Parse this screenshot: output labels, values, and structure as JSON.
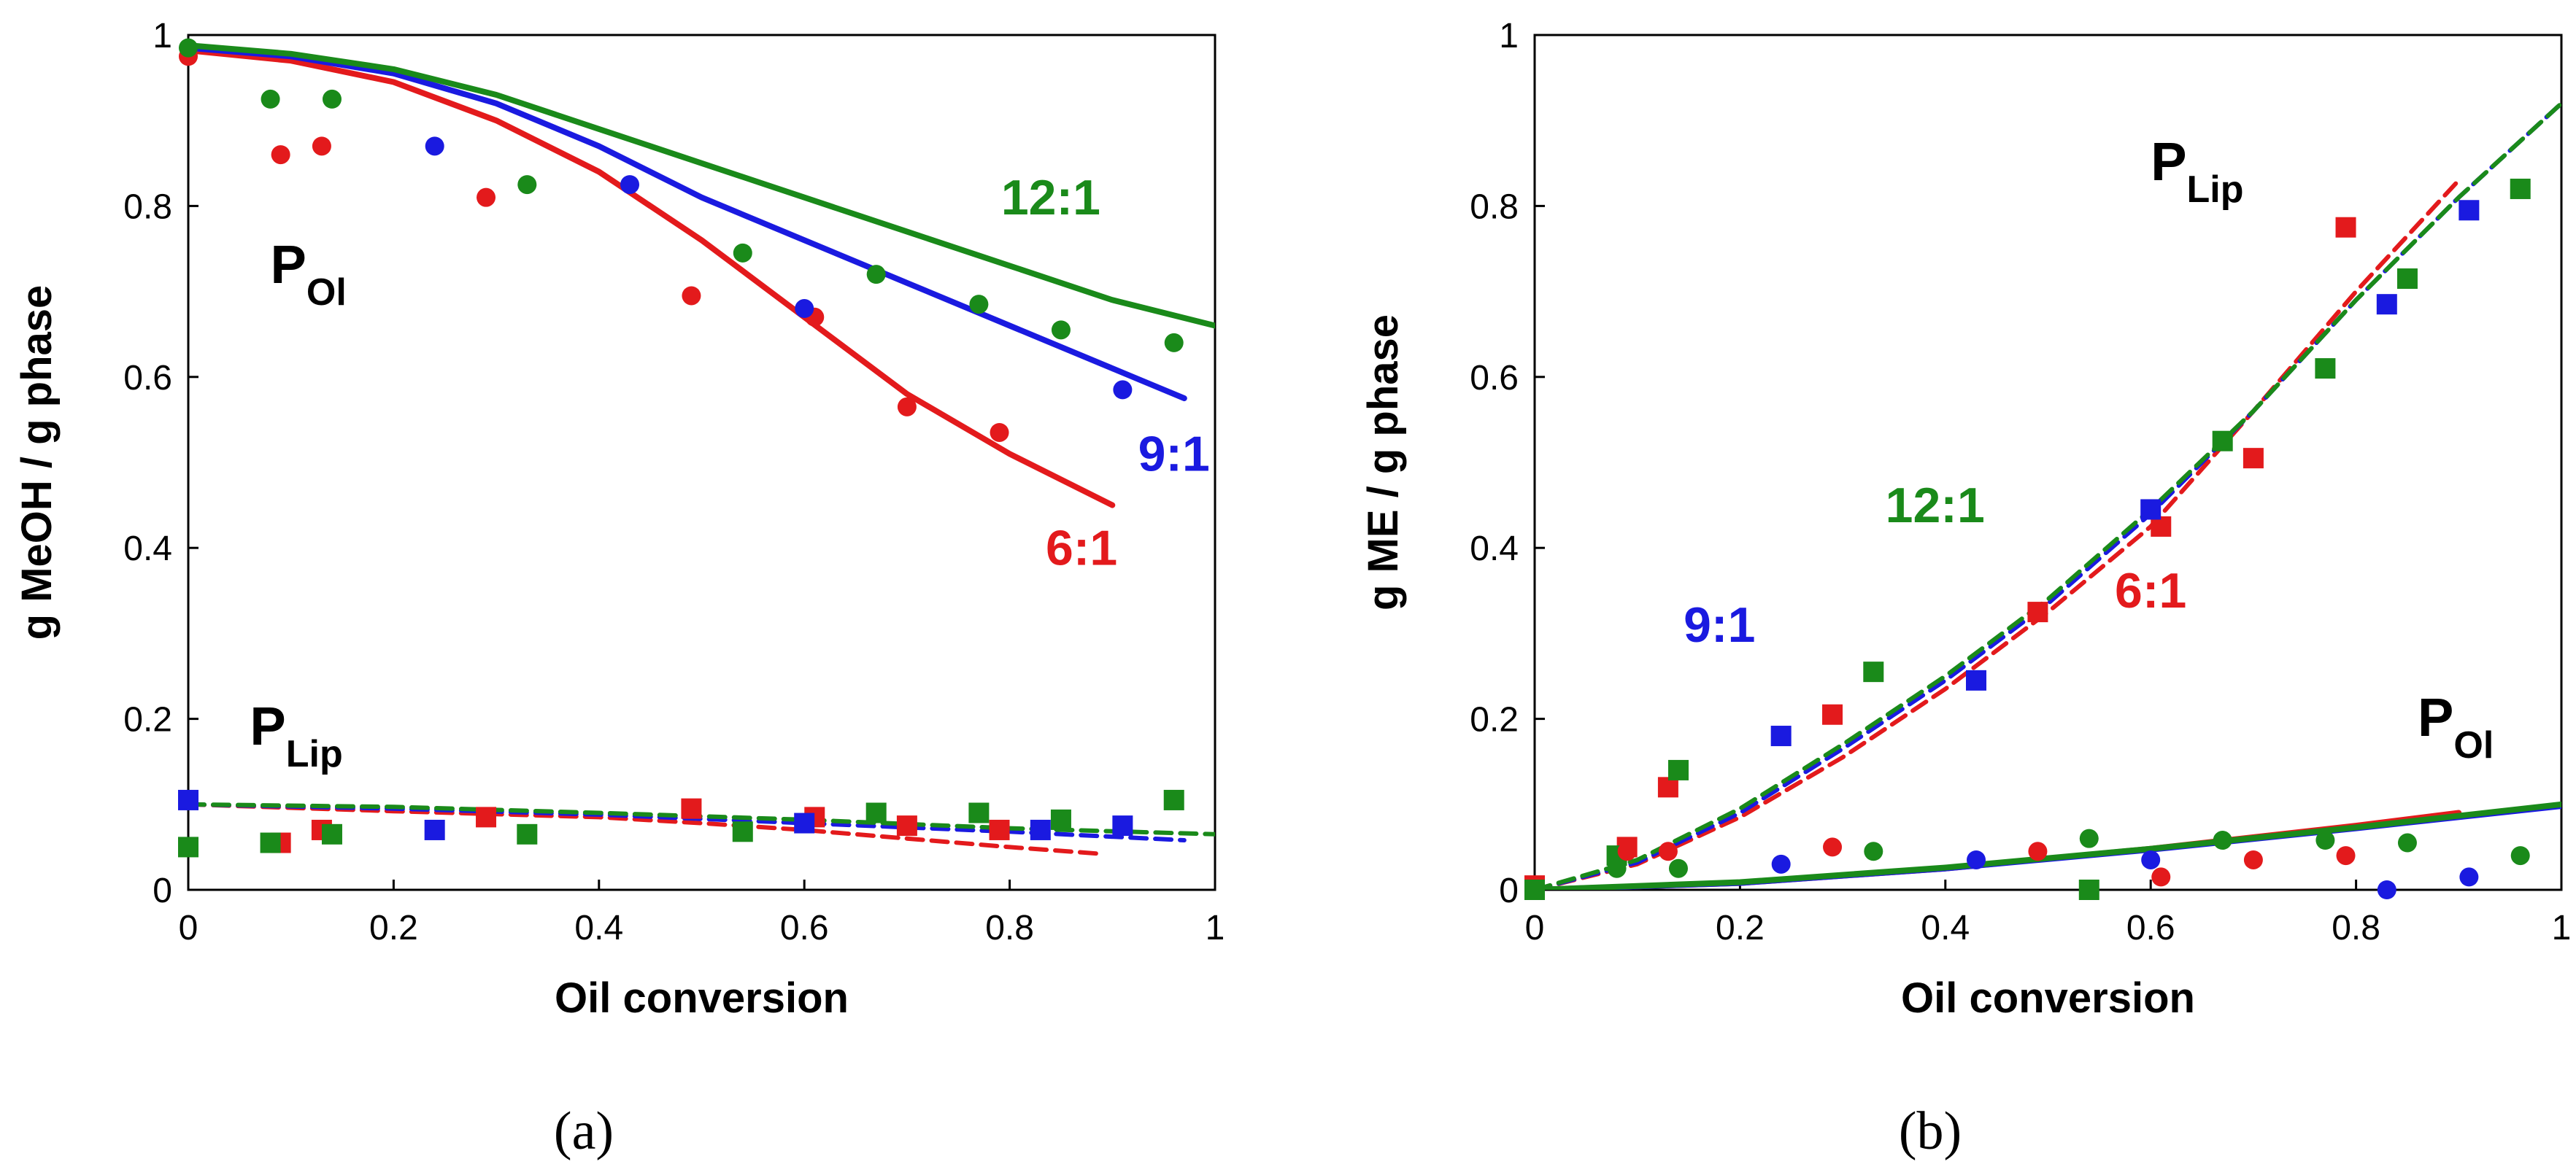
{
  "colors": {
    "6:1": "#e31a1c",
    "9:1": "#1a1ae0",
    "12:1": "#1a8a1a"
  },
  "chart_data": [
    {
      "type": "scatter",
      "panel": "a",
      "caption": "(a)",
      "xlabel": "Oil conversion",
      "ylabel": "g MeOH / g phase",
      "xlim": [
        0,
        1
      ],
      "ylim": [
        0,
        1
      ],
      "xticks": [
        "0",
        "0.2",
        "0.4",
        "0.6",
        "0.8",
        "1"
      ],
      "yticks": [
        "0",
        "0.2",
        "0.4",
        "0.6",
        "0.8",
        "1"
      ],
      "annotations": [
        {
          "base": "P",
          "sub": "Ol",
          "kind": "phase",
          "x": 0.08,
          "y": 0.71
        },
        {
          "base": "P",
          "sub": "Lip",
          "kind": "phase",
          "x": 0.06,
          "y": 0.17
        },
        {
          "text": "12:1",
          "key": "12:1",
          "x": 0.84,
          "y": 0.79
        },
        {
          "text": "9:1",
          "key": "9:1",
          "x": 0.96,
          "y": 0.49
        },
        {
          "text": "6:1",
          "key": "6:1",
          "x": 0.87,
          "y": 0.38
        }
      ],
      "series": [
        {
          "name": "6:1 P_Ol model",
          "key": "6:1",
          "style": "solid",
          "x": [
            0,
            0.1,
            0.2,
            0.3,
            0.4,
            0.5,
            0.6,
            0.7,
            0.8,
            0.9
          ],
          "y": [
            0.982,
            0.97,
            0.945,
            0.9,
            0.84,
            0.76,
            0.67,
            0.58,
            0.51,
            0.45
          ]
        },
        {
          "name": "9:1 P_Ol model",
          "key": "9:1",
          "style": "solid",
          "x": [
            0,
            0.1,
            0.2,
            0.3,
            0.4,
            0.5,
            0.6,
            0.7,
            0.8,
            0.9,
            0.97
          ],
          "y": [
            0.985,
            0.975,
            0.955,
            0.92,
            0.87,
            0.81,
            0.76,
            0.71,
            0.66,
            0.61,
            0.575
          ]
        },
        {
          "name": "12:1 P_Ol model",
          "key": "12:1",
          "style": "solid",
          "x": [
            0,
            0.1,
            0.2,
            0.3,
            0.4,
            0.5,
            0.6,
            0.7,
            0.8,
            0.9,
            1.0
          ],
          "y": [
            0.988,
            0.978,
            0.96,
            0.93,
            0.89,
            0.85,
            0.81,
            0.77,
            0.73,
            0.69,
            0.66
          ]
        },
        {
          "name": "6:1 P_Lip model",
          "key": "6:1",
          "style": "dashed",
          "x": [
            0,
            0.2,
            0.4,
            0.5,
            0.6,
            0.7,
            0.8,
            0.89
          ],
          "y": [
            0.1,
            0.092,
            0.085,
            0.078,
            0.07,
            0.06,
            0.05,
            0.042
          ]
        },
        {
          "name": "9:1 P_Lip model",
          "key": "9:1",
          "style": "dashed",
          "x": [
            0,
            0.2,
            0.4,
            0.6,
            0.8,
            0.97
          ],
          "y": [
            0.1,
            0.095,
            0.088,
            0.078,
            0.068,
            0.058
          ]
        },
        {
          "name": "12:1 P_Lip model",
          "key": "12:1",
          "style": "dashed",
          "x": [
            0,
            0.2,
            0.4,
            0.6,
            0.8,
            1.0
          ],
          "y": [
            0.1,
            0.097,
            0.09,
            0.082,
            0.072,
            0.065
          ]
        },
        {
          "name": "6:1 P_Ol data",
          "key": "6:1",
          "marker": "circle",
          "x": [
            0.0,
            0.09,
            0.13,
            0.29,
            0.49,
            0.61,
            0.7,
            0.79
          ],
          "y": [
            0.975,
            0.86,
            0.87,
            0.81,
            0.695,
            0.67,
            0.565,
            0.535
          ]
        },
        {
          "name": "9:1 P_Ol data",
          "key": "9:1",
          "marker": "circle",
          "x": [
            0.24,
            0.43,
            0.6,
            0.91
          ],
          "y": [
            0.87,
            0.825,
            0.68,
            0.585
          ]
        },
        {
          "name": "12:1 P_Ol data",
          "key": "12:1",
          "marker": "circle",
          "x": [
            0.0,
            0.08,
            0.14,
            0.33,
            0.54,
            0.67,
            0.77,
            0.85,
            0.96
          ],
          "y": [
            0.985,
            0.925,
            0.925,
            0.825,
            0.745,
            0.72,
            0.685,
            0.655,
            0.64
          ]
        },
        {
          "name": "6:1 P_Lip data",
          "key": "6:1",
          "marker": "square",
          "x": [
            0.09,
            0.13,
            0.29,
            0.49,
            0.61,
            0.7,
            0.79
          ],
          "y": [
            0.055,
            0.07,
            0.085,
            0.095,
            0.085,
            0.075,
            0.07
          ]
        },
        {
          "name": "9:1 P_Lip data",
          "key": "9:1",
          "marker": "square",
          "x": [
            0.0,
            0.24,
            0.6,
            0.83,
            0.91
          ],
          "y": [
            0.105,
            0.07,
            0.078,
            0.07,
            0.075
          ]
        },
        {
          "name": "12:1 P_Lip data",
          "key": "12:1",
          "marker": "square",
          "x": [
            0.0,
            0.08,
            0.14,
            0.33,
            0.54,
            0.67,
            0.77,
            0.85,
            0.96
          ],
          "y": [
            0.05,
            0.055,
            0.065,
            0.065,
            0.068,
            0.09,
            0.09,
            0.082,
            0.105
          ]
        }
      ]
    },
    {
      "type": "scatter",
      "panel": "b",
      "caption": "(b)",
      "xlabel": "Oil conversion",
      "ylabel": "g ME / g phase",
      "xlim": [
        0,
        1
      ],
      "ylim": [
        0,
        1
      ],
      "xticks": [
        "0",
        "0.2",
        "0.4",
        "0.6",
        "0.8",
        "1"
      ],
      "yticks": [
        "0",
        "0.2",
        "0.4",
        "0.6",
        "0.8",
        "1"
      ],
      "annotations": [
        {
          "base": "P",
          "sub": "Lip",
          "kind": "phase",
          "x": 0.6,
          "y": 0.83
        },
        {
          "base": "P",
          "sub": "Ol",
          "kind": "phase",
          "x": 0.86,
          "y": 0.18
        },
        {
          "text": "12:1",
          "key": "12:1",
          "x": 0.39,
          "y": 0.43
        },
        {
          "text": "9:1",
          "key": "9:1",
          "x": 0.18,
          "y": 0.29
        },
        {
          "text": "6:1",
          "key": "6:1",
          "x": 0.6,
          "y": 0.33
        }
      ],
      "series": [
        {
          "name": "6:1 P_Lip model",
          "key": "6:1",
          "style": "dashed",
          "x": [
            0,
            0.1,
            0.2,
            0.3,
            0.4,
            0.5,
            0.6,
            0.7,
            0.8,
            0.9
          ],
          "y": [
            0,
            0.03,
            0.085,
            0.155,
            0.235,
            0.325,
            0.425,
            0.56,
            0.7,
            0.83
          ]
        },
        {
          "name": "9:1 P_Lip model",
          "key": "9:1",
          "style": "dashed",
          "x": [
            0,
            0.1,
            0.2,
            0.3,
            0.4,
            0.5,
            0.6,
            0.7,
            0.8,
            0.9,
            1.0
          ],
          "y": [
            0,
            0.032,
            0.09,
            0.165,
            0.245,
            0.335,
            0.44,
            0.56,
            0.69,
            0.81,
            0.92
          ]
        },
        {
          "name": "12:1 P_Lip model",
          "key": "12:1",
          "style": "dashed",
          "x": [
            0,
            0.1,
            0.2,
            0.3,
            0.4,
            0.5,
            0.6,
            0.7,
            0.8,
            0.9,
            1.0
          ],
          "y": [
            0,
            0.035,
            0.095,
            0.17,
            0.25,
            0.34,
            0.445,
            0.56,
            0.69,
            0.81,
            0.92
          ]
        },
        {
          "name": "6:1 P_Ol model",
          "key": "6:1",
          "style": "solid",
          "x": [
            0,
            0.2,
            0.4,
            0.6,
            0.8,
            0.9
          ],
          "y": [
            0,
            0.008,
            0.025,
            0.048,
            0.075,
            0.09
          ]
        },
        {
          "name": "9:1 P_Ol model",
          "key": "9:1",
          "style": "solid",
          "x": [
            0,
            0.2,
            0.4,
            0.6,
            0.8,
            1.0
          ],
          "y": [
            0,
            0.008,
            0.025,
            0.047,
            0.072,
            0.098
          ]
        },
        {
          "name": "12:1 P_Ol model",
          "key": "12:1",
          "style": "solid",
          "x": [
            0,
            0.2,
            0.4,
            0.6,
            0.8,
            1.0
          ],
          "y": [
            0,
            0.009,
            0.026,
            0.048,
            0.073,
            0.1
          ]
        },
        {
          "name": "6:1 P_Lip data",
          "key": "6:1",
          "marker": "square",
          "x": [
            0.0,
            0.09,
            0.13,
            0.29,
            0.49,
            0.61,
            0.7,
            0.79
          ],
          "y": [
            0.005,
            0.05,
            0.12,
            0.205,
            0.325,
            0.425,
            0.505,
            0.775
          ]
        },
        {
          "name": "9:1 P_Lip data",
          "key": "9:1",
          "marker": "square",
          "x": [
            0.24,
            0.43,
            0.6,
            0.83,
            0.91
          ],
          "y": [
            0.18,
            0.245,
            0.445,
            0.685,
            0.795
          ]
        },
        {
          "name": "12:1 P_Lip data",
          "key": "12:1",
          "marker": "square",
          "x": [
            0.0,
            0.08,
            0.14,
            0.33,
            0.54,
            0.67,
            0.77,
            0.85,
            0.96
          ],
          "y": [
            0.0,
            0.04,
            0.14,
            0.255,
            0.0,
            0.525,
            0.61,
            0.715,
            0.82
          ]
        },
        {
          "name": "6:1 P_Ol data",
          "key": "6:1",
          "marker": "circle",
          "x": [
            0.09,
            0.13,
            0.29,
            0.49,
            0.61,
            0.7,
            0.79
          ],
          "y": [
            0.045,
            0.045,
            0.05,
            0.045,
            0.015,
            0.035,
            0.04
          ]
        },
        {
          "name": "9:1 P_Ol data",
          "key": "9:1",
          "marker": "circle",
          "x": [
            0.24,
            0.43,
            0.6,
            0.83,
            0.91
          ],
          "y": [
            0.03,
            0.035,
            0.035,
            0.0,
            0.015
          ]
        },
        {
          "name": "12:1 P_Ol data",
          "key": "12:1",
          "marker": "circle",
          "x": [
            0.08,
            0.14,
            0.33,
            0.54,
            0.67,
            0.77,
            0.85,
            0.96
          ],
          "y": [
            0.025,
            0.025,
            0.045,
            0.06,
            0.058,
            0.058,
            0.055,
            0.04
          ]
        }
      ]
    }
  ]
}
